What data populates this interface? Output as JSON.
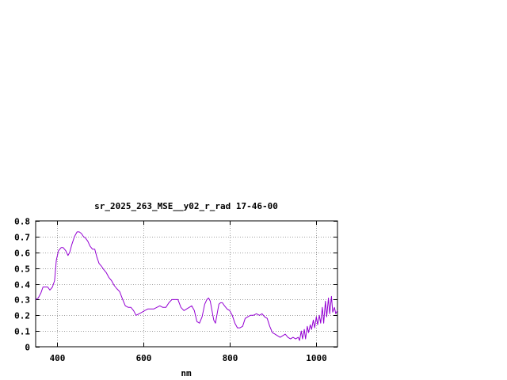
{
  "chart_data": {
    "type": "line",
    "title": "sr_2025_263_MSE__y02_r_rad 17-46-00",
    "xlabel": "nm",
    "ylabel": "",
    "xlim": [
      350,
      1050
    ],
    "ylim": [
      0,
      0.8
    ],
    "grid": true,
    "x_ticks": [
      400,
      600,
      800,
      1000
    ],
    "x_tick_labels": [
      "400",
      "600",
      "800",
      "1000"
    ],
    "y_ticks": [
      0,
      0.1,
      0.2,
      0.3,
      0.4,
      0.5,
      0.6,
      0.7,
      0.8
    ],
    "y_tick_labels": [
      "0",
      "0.1",
      "0.2",
      "0.3",
      "0.4",
      "0.5",
      "0.6",
      "0.7",
      "0.8"
    ],
    "colors": {
      "series": "#9400d3",
      "grid": "#a0a0a0",
      "axis": "#000000"
    },
    "series": [
      {
        "x": [
          350,
          356,
          362,
          367,
          372,
          378,
          383,
          389,
          394,
          398,
          403,
          409,
          414,
          420,
          425,
          429,
          434,
          440,
          446,
          451,
          456,
          461,
          466,
          471,
          476,
          482,
          487,
          492,
          497,
          503,
          508,
          514,
          520,
          526,
          532,
          538,
          545,
          552,
          558,
          565,
          571,
          577,
          583,
          590,
          597,
          603,
          610,
          617,
          624,
          631,
          638,
          645,
          652,
          659,
          666,
          673,
          680,
          687,
          694,
          700,
          706,
          712,
          718,
          724,
          730,
          736,
          742,
          747,
          751,
          755,
          759,
          763,
          767,
          771,
          775,
          779,
          783,
          788,
          794,
          800,
          806,
          812,
          818,
          824,
          830,
          836,
          842,
          848,
          855,
          862,
          869,
          875,
          881,
          887,
          893,
          899,
          905,
          911,
          917,
          923,
          929,
          935,
          941,
          947,
          953,
          959,
          962,
          966,
          969,
          973,
          976,
          980,
          983,
          987,
          990,
          994,
          997,
          1001,
          1004,
          1008,
          1011,
          1015,
          1018,
          1022,
          1025,
          1029,
          1032,
          1036,
          1039,
          1043,
          1046,
          1050
        ],
        "y": [
          0.3,
          0.31,
          0.34,
          0.38,
          0.38,
          0.38,
          0.36,
          0.38,
          0.42,
          0.55,
          0.61,
          0.63,
          0.63,
          0.61,
          0.58,
          0.6,
          0.65,
          0.7,
          0.73,
          0.73,
          0.72,
          0.7,
          0.69,
          0.67,
          0.64,
          0.62,
          0.62,
          0.57,
          0.53,
          0.51,
          0.49,
          0.47,
          0.44,
          0.42,
          0.39,
          0.37,
          0.35,
          0.3,
          0.26,
          0.25,
          0.25,
          0.23,
          0.2,
          0.21,
          0.22,
          0.23,
          0.24,
          0.24,
          0.24,
          0.25,
          0.26,
          0.25,
          0.25,
          0.28,
          0.3,
          0.3,
          0.3,
          0.25,
          0.23,
          0.24,
          0.25,
          0.26,
          0.23,
          0.16,
          0.15,
          0.19,
          0.27,
          0.3,
          0.31,
          0.29,
          0.23,
          0.17,
          0.15,
          0.21,
          0.27,
          0.28,
          0.28,
          0.26,
          0.24,
          0.23,
          0.2,
          0.15,
          0.12,
          0.12,
          0.13,
          0.18,
          0.19,
          0.2,
          0.2,
          0.21,
          0.2,
          0.21,
          0.19,
          0.18,
          0.13,
          0.09,
          0.08,
          0.07,
          0.06,
          0.07,
          0.08,
          0.06,
          0.05,
          0.06,
          0.05,
          0.06,
          0.04,
          0.1,
          0.05,
          0.11,
          0.05,
          0.13,
          0.09,
          0.14,
          0.11,
          0.17,
          0.12,
          0.19,
          0.14,
          0.2,
          0.15,
          0.25,
          0.15,
          0.29,
          0.19,
          0.31,
          0.21,
          0.32,
          0.22,
          0.25,
          0.21,
          0.23
        ]
      }
    ]
  }
}
